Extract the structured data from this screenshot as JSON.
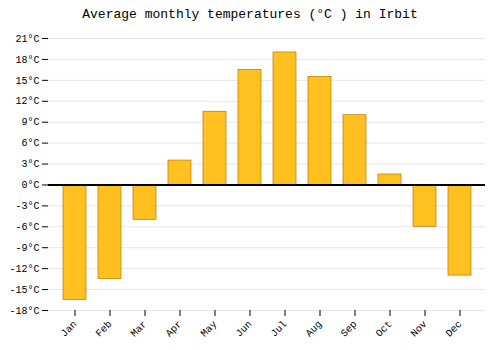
{
  "chart_data": {
    "type": "bar",
    "title": "Average monthly temperatures (°C ) in Irbit",
    "categories": [
      "Jan",
      "Feb",
      "Mar",
      "Apr",
      "May",
      "Jun",
      "Jul",
      "Aug",
      "Sep",
      "Oct",
      "Nov",
      "Dec"
    ],
    "values": [
      -16.5,
      -13.5,
      -5.0,
      3.5,
      10.5,
      16.5,
      19.0,
      15.5,
      10.0,
      1.5,
      -6.0,
      -13.0
    ],
    "color": "#FFC020",
    "ylim": [
      -18,
      21
    ],
    "yticks": [
      {
        "value": -18,
        "label": "-18°C"
      },
      {
        "value": -15,
        "label": "-15°C"
      },
      {
        "value": -12,
        "label": "-12°C"
      },
      {
        "value": -9,
        "label": "-9°C"
      },
      {
        "value": -6,
        "label": "-6°C"
      },
      {
        "value": -3,
        "label": "-3°C"
      },
      {
        "value": 0,
        "label": "0°C"
      },
      {
        "value": 3,
        "label": "3°C"
      },
      {
        "value": 6,
        "label": "6°C"
      },
      {
        "value": 9,
        "label": "9°C"
      },
      {
        "value": 12,
        "label": "12°C"
      },
      {
        "value": 15,
        "label": "15°C"
      },
      {
        "value": 18,
        "label": "18°C"
      },
      {
        "value": 21,
        "label": "21°C"
      }
    ],
    "grid": true
  }
}
